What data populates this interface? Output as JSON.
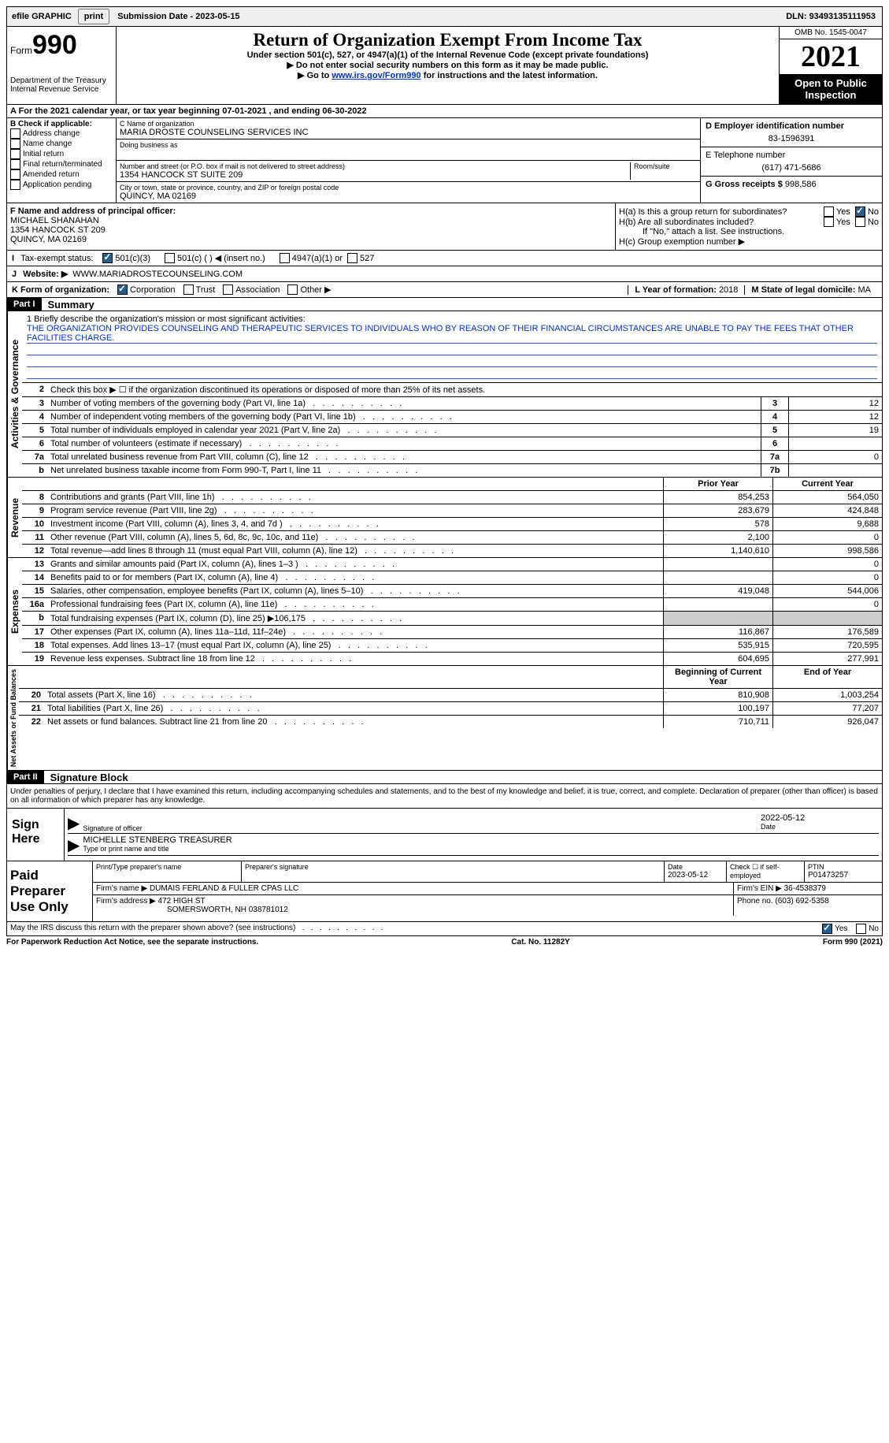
{
  "topbar": {
    "efile": "efile GRAPHIC",
    "print": "print",
    "sub_date_label": "Submission Date - ",
    "sub_date": "2023-05-15",
    "dln_label": "DLN: ",
    "dln": "93493135111953"
  },
  "header": {
    "form_word": "Form",
    "form_num": "990",
    "dept": "Department of the Treasury",
    "irs": "Internal Revenue Service",
    "title": "Return of Organization Exempt From Income Tax",
    "subtitle": "Under section 501(c), 527, or 4947(a)(1) of the Internal Revenue Code (except private foundations)",
    "note1": "Do not enter social security numbers on this form as it may be made public.",
    "note2_pre": "Go to ",
    "note2_link": "www.irs.gov/Form990",
    "note2_post": " for instructions and the latest information.",
    "omb": "OMB No. 1545-0047",
    "year": "2021",
    "inspection": "Open to Public Inspection"
  },
  "period": {
    "text_a": "A For the 2021 calendar year, or tax year beginning ",
    "begin": "07-01-2021",
    "text_b": "   , and ending ",
    "end": "06-30-2022"
  },
  "sectionB": {
    "label": "B Check if applicable:",
    "opts": [
      "Address change",
      "Name change",
      "Initial return",
      "Final return/terminated",
      "Amended return",
      "Application pending"
    ],
    "c_label": "C Name of organization",
    "org_name": "MARIA DROSTE COUNSELING SERVICES INC",
    "dba_label": "Doing business as",
    "addr_label": "Number and street (or P.O. box if mail is not delivered to street address)",
    "room_label": "Room/suite",
    "addr": "1354 HANCOCK ST SUITE 209",
    "city_label": "City or town, state or province, country, and ZIP or foreign postal code",
    "city": "QUINCY, MA  02169",
    "d_label": "D Employer identification number",
    "ein": "83-1596391",
    "e_label": "E Telephone number",
    "phone": "(617) 471-5686",
    "g_label": "G Gross receipts $ ",
    "gross": "998,586"
  },
  "fgh": {
    "f_label": "F Name and address of principal officer:",
    "officer_name": "MICHAEL SHANAHAN",
    "officer_addr1": "1354 HANCOCK ST 209",
    "officer_addr2": "QUINCY, MA  02169",
    "ha": "H(a)  Is this a group return for subordinates?",
    "hb": "H(b)  Are all subordinates included?",
    "hb_note": "If \"No,\" attach a list. See instructions.",
    "hc": "H(c)  Group exemption number ▶",
    "yes": "Yes",
    "no": "No"
  },
  "status": {
    "i": "I",
    "label": "Tax-exempt status:",
    "c3": "501(c)(3)",
    "c_other": "501(c) (   ) ◀ (insert no.)",
    "a1": "4947(a)(1) or",
    "s527": "527"
  },
  "website": {
    "j": "J",
    "label": "Website: ▶",
    "url": "WWW.MARIADROSTECOUNSELING.COM"
  },
  "k": {
    "label": "K Form of organization:",
    "corp": "Corporation",
    "trust": "Trust",
    "assoc": "Association",
    "other": "Other ▶",
    "l_label": "L Year of formation: ",
    "l_val": "2018",
    "m_label": "M State of legal domicile: ",
    "m_val": "MA"
  },
  "part1": {
    "header": "Part I",
    "title": "Summary",
    "side_ag": "Activities & Governance",
    "side_rev": "Revenue",
    "side_exp": "Expenses",
    "side_net": "Net Assets or Fund Balances",
    "q1_label": "1  Briefly describe the organization's mission or most significant activities:",
    "mission": "THE ORGANIZATION PROVIDES COUNSELING AND THERAPEUTIC SERVICES TO INDIVIDUALS WHO BY REASON OF THEIR FINANCIAL CIRCUMSTANCES ARE UNABLE TO PAY THE FEES THAT OTHER FACILITIES CHARGE.",
    "q2": "Check this box ▶ ☐ if the organization discontinued its operations or disposed of more than 25% of its net assets.",
    "lines_gov": [
      {
        "n": "3",
        "t": "Number of voting members of the governing body (Part VI, line 1a)",
        "b": "3",
        "v": "12"
      },
      {
        "n": "4",
        "t": "Number of independent voting members of the governing body (Part VI, line 1b)",
        "b": "4",
        "v": "12"
      },
      {
        "n": "5",
        "t": "Total number of individuals employed in calendar year 2021 (Part V, line 2a)",
        "b": "5",
        "v": "19"
      },
      {
        "n": "6",
        "t": "Total number of volunteers (estimate if necessary)",
        "b": "6",
        "v": ""
      },
      {
        "n": "7a",
        "t": "Total unrelated business revenue from Part VIII, column (C), line 12",
        "b": "7a",
        "v": "0"
      },
      {
        "n": "b",
        "t": "Net unrelated business taxable income from Form 990-T, Part I, line 11",
        "b": "7b",
        "v": ""
      }
    ],
    "col_prior": "Prior Year",
    "col_curr": "Current Year",
    "lines_rev": [
      {
        "n": "8",
        "t": "Contributions and grants (Part VIII, line 1h)",
        "p": "854,253",
        "c": "564,050"
      },
      {
        "n": "9",
        "t": "Program service revenue (Part VIII, line 2g)",
        "p": "283,679",
        "c": "424,848"
      },
      {
        "n": "10",
        "t": "Investment income (Part VIII, column (A), lines 3, 4, and 7d )",
        "p": "578",
        "c": "9,688"
      },
      {
        "n": "11",
        "t": "Other revenue (Part VIII, column (A), lines 5, 6d, 8c, 9c, 10c, and 11e)",
        "p": "2,100",
        "c": "0"
      },
      {
        "n": "12",
        "t": "Total revenue—add lines 8 through 11 (must equal Part VIII, column (A), line 12)",
        "p": "1,140,610",
        "c": "998,586"
      }
    ],
    "lines_exp": [
      {
        "n": "13",
        "t": "Grants and similar amounts paid (Part IX, column (A), lines 1–3 )",
        "p": "",
        "c": "0"
      },
      {
        "n": "14",
        "t": "Benefits paid to or for members (Part IX, column (A), line 4)",
        "p": "",
        "c": "0"
      },
      {
        "n": "15",
        "t": "Salaries, other compensation, employee benefits (Part IX, column (A), lines 5–10)",
        "p": "419,048",
        "c": "544,006"
      },
      {
        "n": "16a",
        "t": "Professional fundraising fees (Part IX, column (A), line 11e)",
        "p": "",
        "c": "0"
      },
      {
        "n": "b",
        "t": "Total fundraising expenses (Part IX, column (D), line 25) ▶106,175",
        "p": "shaded",
        "c": "shaded"
      },
      {
        "n": "17",
        "t": "Other expenses (Part IX, column (A), lines 11a–11d, 11f–24e)",
        "p": "116,867",
        "c": "176,589"
      },
      {
        "n": "18",
        "t": "Total expenses. Add lines 13–17 (must equal Part IX, column (A), line 25)",
        "p": "535,915",
        "c": "720,595"
      },
      {
        "n": "19",
        "t": "Revenue less expenses. Subtract line 18 from line 12",
        "p": "604,695",
        "c": "277,991"
      }
    ],
    "col_begin": "Beginning of Current Year",
    "col_end": "End of Year",
    "lines_net": [
      {
        "n": "20",
        "t": "Total assets (Part X, line 16)",
        "p": "810,908",
        "c": "1,003,254"
      },
      {
        "n": "21",
        "t": "Total liabilities (Part X, line 26)",
        "p": "100,197",
        "c": "77,207"
      },
      {
        "n": "22",
        "t": "Net assets or fund balances. Subtract line 21 from line 20",
        "p": "710,711",
        "c": "926,047"
      }
    ]
  },
  "part2": {
    "header": "Part II",
    "title": "Signature Block",
    "penalty": "Under penalties of perjury, I declare that I have examined this return, including accompanying schedules and statements, and to the best of my knowledge and belief, it is true, correct, and complete. Declaration of preparer (other than officer) is based on all information of which preparer has any knowledge.",
    "sign_here": "Sign Here",
    "sig_officer": "Signature of officer",
    "sig_date": "2022-05-12",
    "date_label": "Date",
    "officer_print": "MICHELLE STENBERG TREASURER",
    "print_label": "Type or print name and title",
    "paid": "Paid Preparer Use Only",
    "prep_name_label": "Print/Type preparer's name",
    "prep_sig_label": "Preparer's signature",
    "prep_date_label": "Date",
    "prep_date": "2023-05-12",
    "check_if": "Check ☐ if self-employed",
    "ptin_label": "PTIN",
    "ptin": "P01473257",
    "firm_name_label": "Firm's name    ▶ ",
    "firm_name": "DUMAIS FERLAND & FULLER CPAS LLC",
    "firm_ein_label": "Firm's EIN ▶ ",
    "firm_ein": "36-4538379",
    "firm_addr_label": "Firm's address ▶ ",
    "firm_addr1": "472 HIGH ST",
    "firm_addr2": "SOMERSWORTH, NH  038781012",
    "firm_phone_label": "Phone no. ",
    "firm_phone": "(603) 692-5358",
    "discuss": "May the IRS discuss this return with the preparer shown above? (see instructions)",
    "paperwork": "For Paperwork Reduction Act Notice, see the separate instructions.",
    "cat": "Cat. No. 11282Y",
    "form_foot": "Form 990 (2021)"
  }
}
